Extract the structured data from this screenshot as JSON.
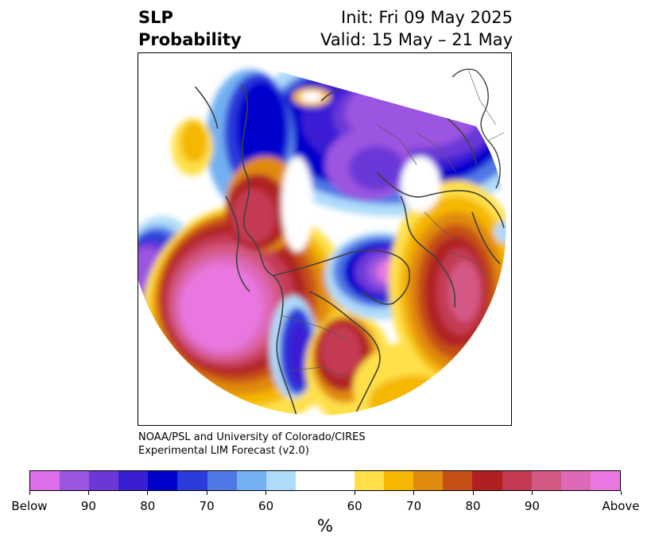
{
  "header": {
    "title_line1": "SLP",
    "title_line2": "Probability",
    "init_text": "Init: Fri 09 May 2025",
    "valid_text": "Valid: 15 May – 21 May"
  },
  "credit": {
    "line1": "NOAA/PSL and University of Colorado/CIRES",
    "line2": "Experimental LIM Forecast (v2.0)"
  },
  "colorbar": {
    "unit": "%",
    "below_colors": [
      "#dc6ee8",
      "#9b55e0",
      "#6b38d8",
      "#3a1ed4",
      "#0000cd",
      "#2a3bd9",
      "#4f78e6",
      "#72b0f2",
      "#aedbfa"
    ],
    "neutral_color": "#ffffff",
    "above_colors": [
      "#ffe04a",
      "#f5b700",
      "#e08a10",
      "#c65018",
      "#b02020",
      "#c43a52",
      "#d45884",
      "#de68b8",
      "#e878e0"
    ],
    "tick_labels": [
      "Below",
      "90",
      "80",
      "70",
      "60",
      "60",
      "70",
      "80",
      "90",
      "Above"
    ]
  },
  "map": {
    "land_outline_color": "#404040"
  }
}
